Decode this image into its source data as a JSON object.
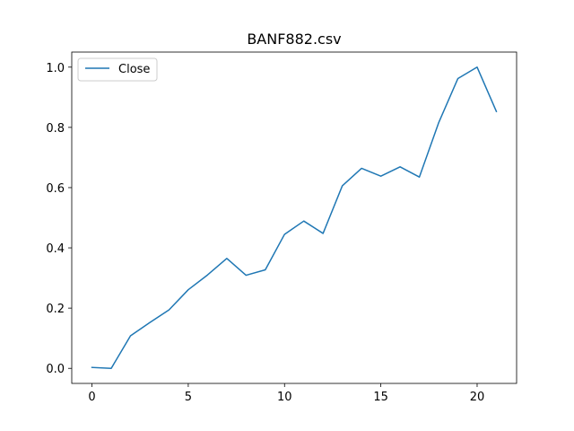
{
  "chart_data": {
    "type": "line",
    "title": "BANF882.csv",
    "xlabel": "",
    "ylabel": "",
    "xlim": [
      -1.05,
      22.05
    ],
    "ylim": [
      -0.05,
      1.05
    ],
    "x_ticks": [
      "0",
      "5",
      "10",
      "15",
      "20"
    ],
    "y_ticks": [
      "0.0",
      "0.2",
      "0.4",
      "0.6",
      "0.8",
      "1.0"
    ],
    "grid": false,
    "legend_position": "upper-left",
    "series": [
      {
        "name": "Close",
        "color": "#1f77b4",
        "x": [
          0,
          1,
          2,
          3,
          4,
          5,
          6,
          7,
          8,
          9,
          10,
          11,
          12,
          13,
          14,
          15,
          16,
          17,
          18,
          19,
          20,
          21
        ],
        "y": [
          0.003,
          0.0,
          0.108,
          0.152,
          0.194,
          0.261,
          0.31,
          0.365,
          0.309,
          0.327,
          0.445,
          0.489,
          0.448,
          0.606,
          0.664,
          0.638,
          0.669,
          0.635,
          0.815,
          0.962,
          1.0,
          0.853
        ]
      }
    ]
  }
}
